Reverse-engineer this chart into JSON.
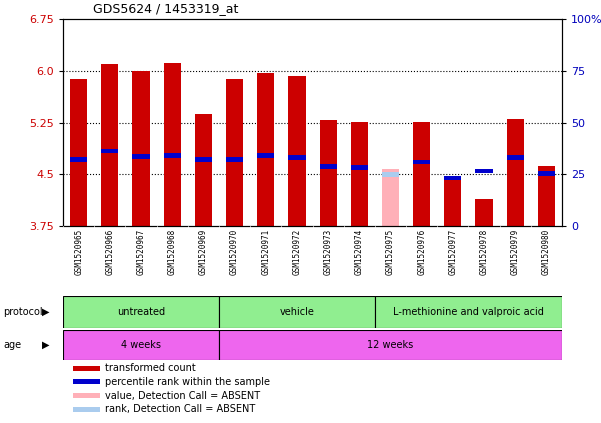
{
  "title": "GDS5624 / 1453319_at",
  "samples": [
    "GSM1520965",
    "GSM1520966",
    "GSM1520967",
    "GSM1520968",
    "GSM1520969",
    "GSM1520970",
    "GSM1520971",
    "GSM1520972",
    "GSM1520973",
    "GSM1520974",
    "GSM1520975",
    "GSM1520976",
    "GSM1520977",
    "GSM1520978",
    "GSM1520979",
    "GSM1520980"
  ],
  "red_values": [
    5.88,
    6.1,
    6.0,
    6.12,
    5.37,
    5.88,
    5.97,
    5.92,
    5.29,
    5.26,
    null,
    5.26,
    4.46,
    4.14,
    5.31,
    4.63
  ],
  "blue_marker_y": [
    4.72,
    4.84,
    4.76,
    4.78,
    4.72,
    4.72,
    4.78,
    4.74,
    4.62,
    4.6,
    null,
    4.68,
    4.45,
    4.55,
    4.75,
    4.52
  ],
  "pink_value": [
    null,
    null,
    null,
    null,
    null,
    null,
    null,
    null,
    null,
    null,
    4.58,
    null,
    null,
    null,
    null,
    null
  ],
  "light_blue_marker_y": [
    null,
    null,
    null,
    null,
    null,
    null,
    null,
    null,
    null,
    null,
    4.5,
    null,
    null,
    null,
    null,
    null
  ],
  "y_min": 3.75,
  "y_max": 6.75,
  "y_ticks_left": [
    3.75,
    4.5,
    5.25,
    6.0,
    6.75
  ],
  "y_ticks_right_vals": [
    0,
    25,
    50,
    75,
    100
  ],
  "bar_width": 0.55,
  "bar_base": 3.75,
  "red_color": "#CC0000",
  "pink_color": "#FFB0B8",
  "blue_color": "#0000CC",
  "light_blue_color": "#AACCEE",
  "bg_color": "#FFFFFF",
  "plot_bg_color": "#FFFFFF",
  "tick_color_left": "#CC0000",
  "tick_color_right": "#0000BB",
  "sample_bg_color": "#C8C8C8",
  "proto_color": "#90EE90",
  "age_color": "#EE66EE",
  "legend_items": [
    [
      "#CC0000",
      "transformed count"
    ],
    [
      "#0000CC",
      "percentile rank within the sample"
    ],
    [
      "#FFB0B8",
      "value, Detection Call = ABSENT"
    ],
    [
      "#AACCEE",
      "rank, Detection Call = ABSENT"
    ]
  ],
  "proto_groups": [
    [
      0,
      5,
      "untreated"
    ],
    [
      5,
      10,
      "vehicle"
    ],
    [
      10,
      16,
      "L-methionine and valproic acid"
    ]
  ],
  "age_groups": [
    [
      0,
      5,
      "4 weeks"
    ],
    [
      5,
      16,
      "12 weeks"
    ]
  ]
}
